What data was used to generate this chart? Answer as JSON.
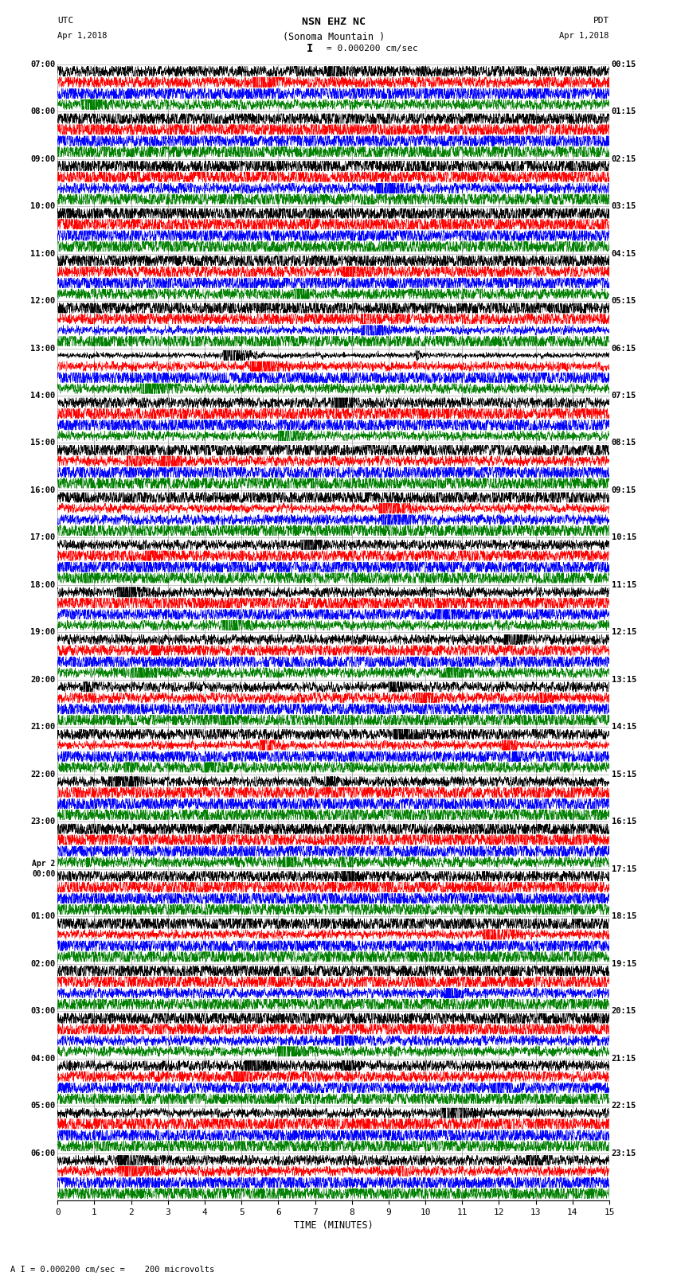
{
  "title_line1": "NSN EHZ NC",
  "title_line2": "(Sonoma Mountain )",
  "title_line3": "I = 0.000200 cm/sec",
  "label_utc": "UTC",
  "label_date_left": "Apr 1,2018",
  "label_pdt": "PDT",
  "label_date_right": "Apr 1,2018",
  "xlabel": "TIME (MINUTES)",
  "footer": "= 0.000200 cm/sec =    200 microvolts",
  "background_color": "#ffffff",
  "trace_colors": [
    "black",
    "red",
    "blue",
    "green"
  ],
  "num_traces_per_row": 4,
  "x_min": 0,
  "x_max": 15,
  "x_ticks": [
    0,
    1,
    2,
    3,
    4,
    5,
    6,
    7,
    8,
    9,
    10,
    11,
    12,
    13,
    14,
    15
  ],
  "grid_color": "#999999",
  "num_rows": 24,
  "utc_labels": [
    "07:00",
    "08:00",
    "09:00",
    "10:00",
    "11:00",
    "12:00",
    "13:00",
    "14:00",
    "15:00",
    "16:00",
    "17:00",
    "18:00",
    "19:00",
    "20:00",
    "21:00",
    "22:00",
    "23:00",
    "Apr 2\n00:00",
    "01:00",
    "02:00",
    "03:00",
    "04:00",
    "05:00",
    "06:00"
  ],
  "pdt_labels": [
    "00:15",
    "01:15",
    "02:15",
    "03:15",
    "04:15",
    "05:15",
    "06:15",
    "07:15",
    "08:15",
    "09:15",
    "10:15",
    "11:15",
    "12:15",
    "13:15",
    "14:15",
    "15:15",
    "16:15",
    "17:15",
    "18:15",
    "19:15",
    "20:15",
    "21:15",
    "22:15",
    "23:15"
  ]
}
